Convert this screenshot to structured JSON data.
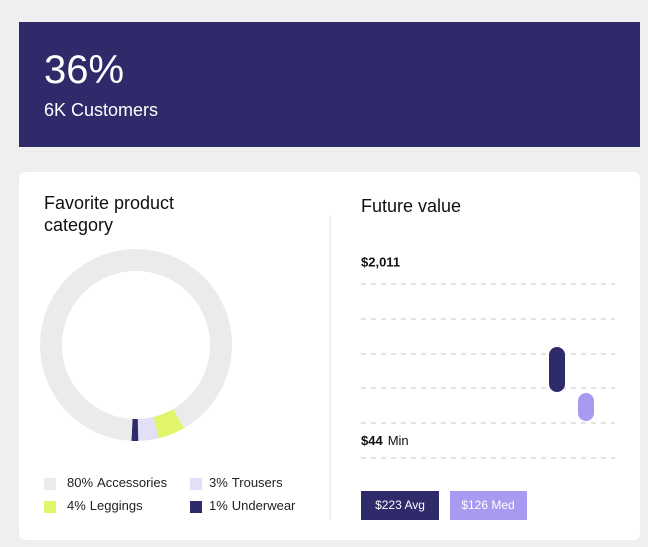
{
  "header": {
    "value": "36%",
    "label": "6K Customers"
  },
  "chart_data": {
    "type": "pie",
    "title": "Favorite product category",
    "categories": [
      "Accessories",
      "Trousers",
      "Leggings",
      "Underwear"
    ],
    "values": [
      80,
      3,
      4,
      1
    ],
    "value_labels": [
      "80%",
      "3%",
      "4%",
      "1%"
    ],
    "colors": [
      "#ebebeb",
      "#e2e0f7",
      "#e2f56a",
      "#2f2b6a"
    ],
    "donut": true
  },
  "future_value": {
    "title": "Future value",
    "max": "$2,011",
    "min": "$44",
    "min_label": "Min",
    "avg": "$223 Avg",
    "med": "$126 Med"
  }
}
